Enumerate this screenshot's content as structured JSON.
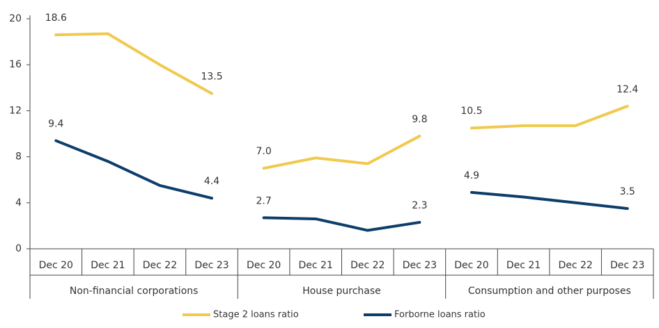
{
  "chart_data": {
    "type": "line",
    "groups": [
      {
        "name": "Non-financial corporations",
        "categories": [
          "Dec 20",
          "Dec 21",
          "Dec 22",
          "Dec 23"
        ]
      },
      {
        "name": "House purchase",
        "categories": [
          "Dec 20",
          "Dec 21",
          "Dec 22",
          "Dec 23"
        ]
      },
      {
        "name": "Consumption and other purposes",
        "categories": [
          "Dec 20",
          "Dec 21",
          "Dec 22",
          "Dec 23"
        ]
      }
    ],
    "series": [
      {
        "name": "Stage 2 loans ratio",
        "color": "#f0c94e",
        "values": [
          [
            18.6,
            18.7,
            16.0,
            13.5
          ],
          [
            7.0,
            7.9,
            7.4,
            9.8
          ],
          [
            10.5,
            10.7,
            10.7,
            12.4
          ]
        ],
        "value_labels": [
          [
            "18.6",
            null,
            null,
            "13.5"
          ],
          [
            "7.0",
            null,
            null,
            "9.8"
          ],
          [
            "10.5",
            null,
            null,
            "12.4"
          ]
        ]
      },
      {
        "name": "Forborne loans ratio",
        "color": "#0d3e6b",
        "values": [
          [
            9.4,
            7.6,
            5.5,
            4.4
          ],
          [
            2.7,
            2.6,
            1.6,
            2.3
          ],
          [
            4.9,
            4.5,
            4.0,
            3.5
          ]
        ],
        "value_labels": [
          [
            "9.4",
            null,
            null,
            "4.4"
          ],
          [
            "2.7",
            null,
            null,
            "2.3"
          ],
          [
            "4.9",
            null,
            null,
            "3.5"
          ]
        ]
      }
    ],
    "ylim": [
      0,
      20
    ],
    "yticks": [
      0,
      4,
      8,
      12,
      16,
      20
    ]
  }
}
